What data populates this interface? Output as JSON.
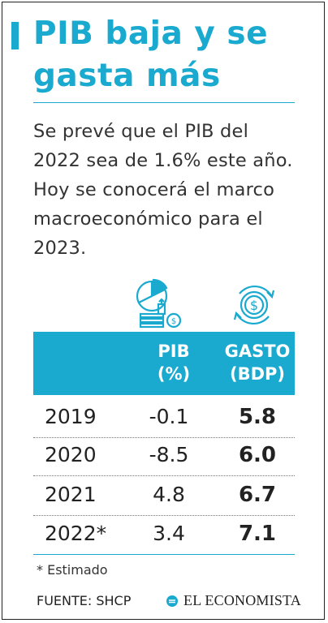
{
  "title": "PIB baja y se gasta más",
  "intro": "Se prevé que el PIB del 2022 sea de 1.6% este año. Hoy se conocerá el marco macroeconómico para el 2023.",
  "icons": {
    "pib": "pie-chart-money-icon",
    "gasto": "dollar-coin-cycle-icon",
    "brand": "el-economista-logo-icon"
  },
  "table": {
    "headers": {
      "pib": "PIB (%)",
      "gasto": "GASTO (BDP)"
    },
    "rows": [
      {
        "year": "2019",
        "pib": "-0.1",
        "gasto": "5.8"
      },
      {
        "year": "2020",
        "pib": "-8.5",
        "gasto": "6.0"
      },
      {
        "year": "2021",
        "pib": "4.8",
        "gasto": "6.7"
      },
      {
        "year": "2022*",
        "pib": "3.4",
        "gasto": "7.1"
      }
    ]
  },
  "footnote": "* Estimado",
  "source": "FUENTE: SHCP",
  "brand": "EL ECONOMISTA",
  "colors": {
    "accent": "#1aa9cf",
    "text": "#333333"
  }
}
